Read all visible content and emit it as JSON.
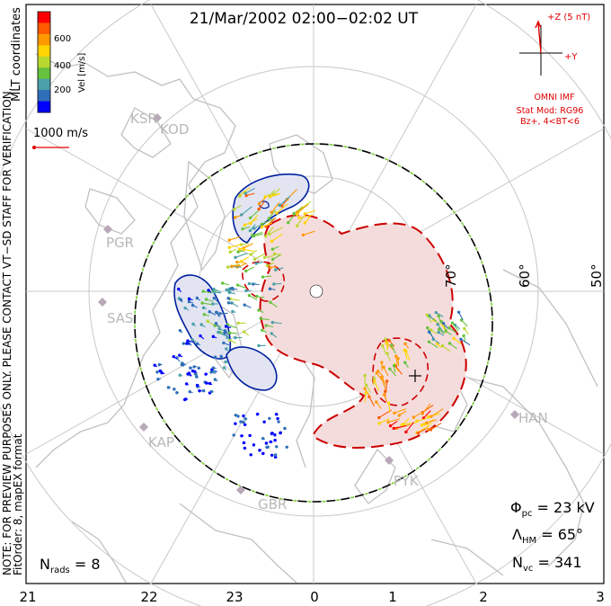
{
  "title": "21/Mar/2002 02:00−02:02 UT",
  "side_label": "MLT coordinates",
  "colorbar": {
    "label": "Vel [m/s]",
    "ticks": [
      "600",
      "400",
      "200"
    ],
    "colors": [
      "#0000ff",
      "#2f6fb8",
      "#4aa0a8",
      "#66c23c",
      "#b9d830",
      "#ffd400",
      "#ff9900",
      "#ff5a00",
      "#ff0000"
    ]
  },
  "scale_vector": {
    "label": "1000 m/s",
    "color": "#dd0000"
  },
  "imf": {
    "z_label": "+Z (5 nT)",
    "y_label": "+Y",
    "source": "OMNI IMF",
    "model_line1": "Stat Mod: RG96",
    "model_line2": "Bz+, 4<BT<6",
    "color": "#dd0000"
  },
  "stations": [
    {
      "code": "KSR"
    },
    {
      "code": "KOD"
    },
    {
      "code": "PGR"
    },
    {
      "code": "SAS"
    },
    {
      "code": "KAP"
    },
    {
      "code": "GBR"
    },
    {
      "code": "PYK"
    },
    {
      "code": "HAN"
    }
  ],
  "lat_labels": [
    "70°",
    "60°",
    "50°"
  ],
  "mlt_labels": [
    "21",
    "22",
    "23",
    "0",
    "1",
    "2",
    "3"
  ],
  "notes": {
    "preview": "NOTE: FOR PREVIEW PURPOSES ONLY. PLEASE CONTACT VT−SD STAFF FOR VERIFICATION.",
    "fit": "FitOrder: 8, mapEX format"
  },
  "stats": {
    "phi_symbol": "Φ",
    "phi_sub": "pc",
    "phi_value": " = 23 kV",
    "lambda_symbol": "Λ",
    "lambda_sub": "HM",
    "lambda_value": " = 65°",
    "nvc_symbol": "N",
    "nvc_sub": "vc",
    "nvc_value": " = 341",
    "nrads_symbol": "N",
    "nrads_sub": "rads",
    "nrads_value": " = 8"
  },
  "colors": {
    "negative_cell": "#cc0000",
    "negative_fill": "#f5dcdc",
    "positive_cell": "#0020a0",
    "positive_fill": "#e2e4f2",
    "boundary_dash": "#7fd03a",
    "grid": "#c8c8c8",
    "coast": "#c0c0c0"
  }
}
